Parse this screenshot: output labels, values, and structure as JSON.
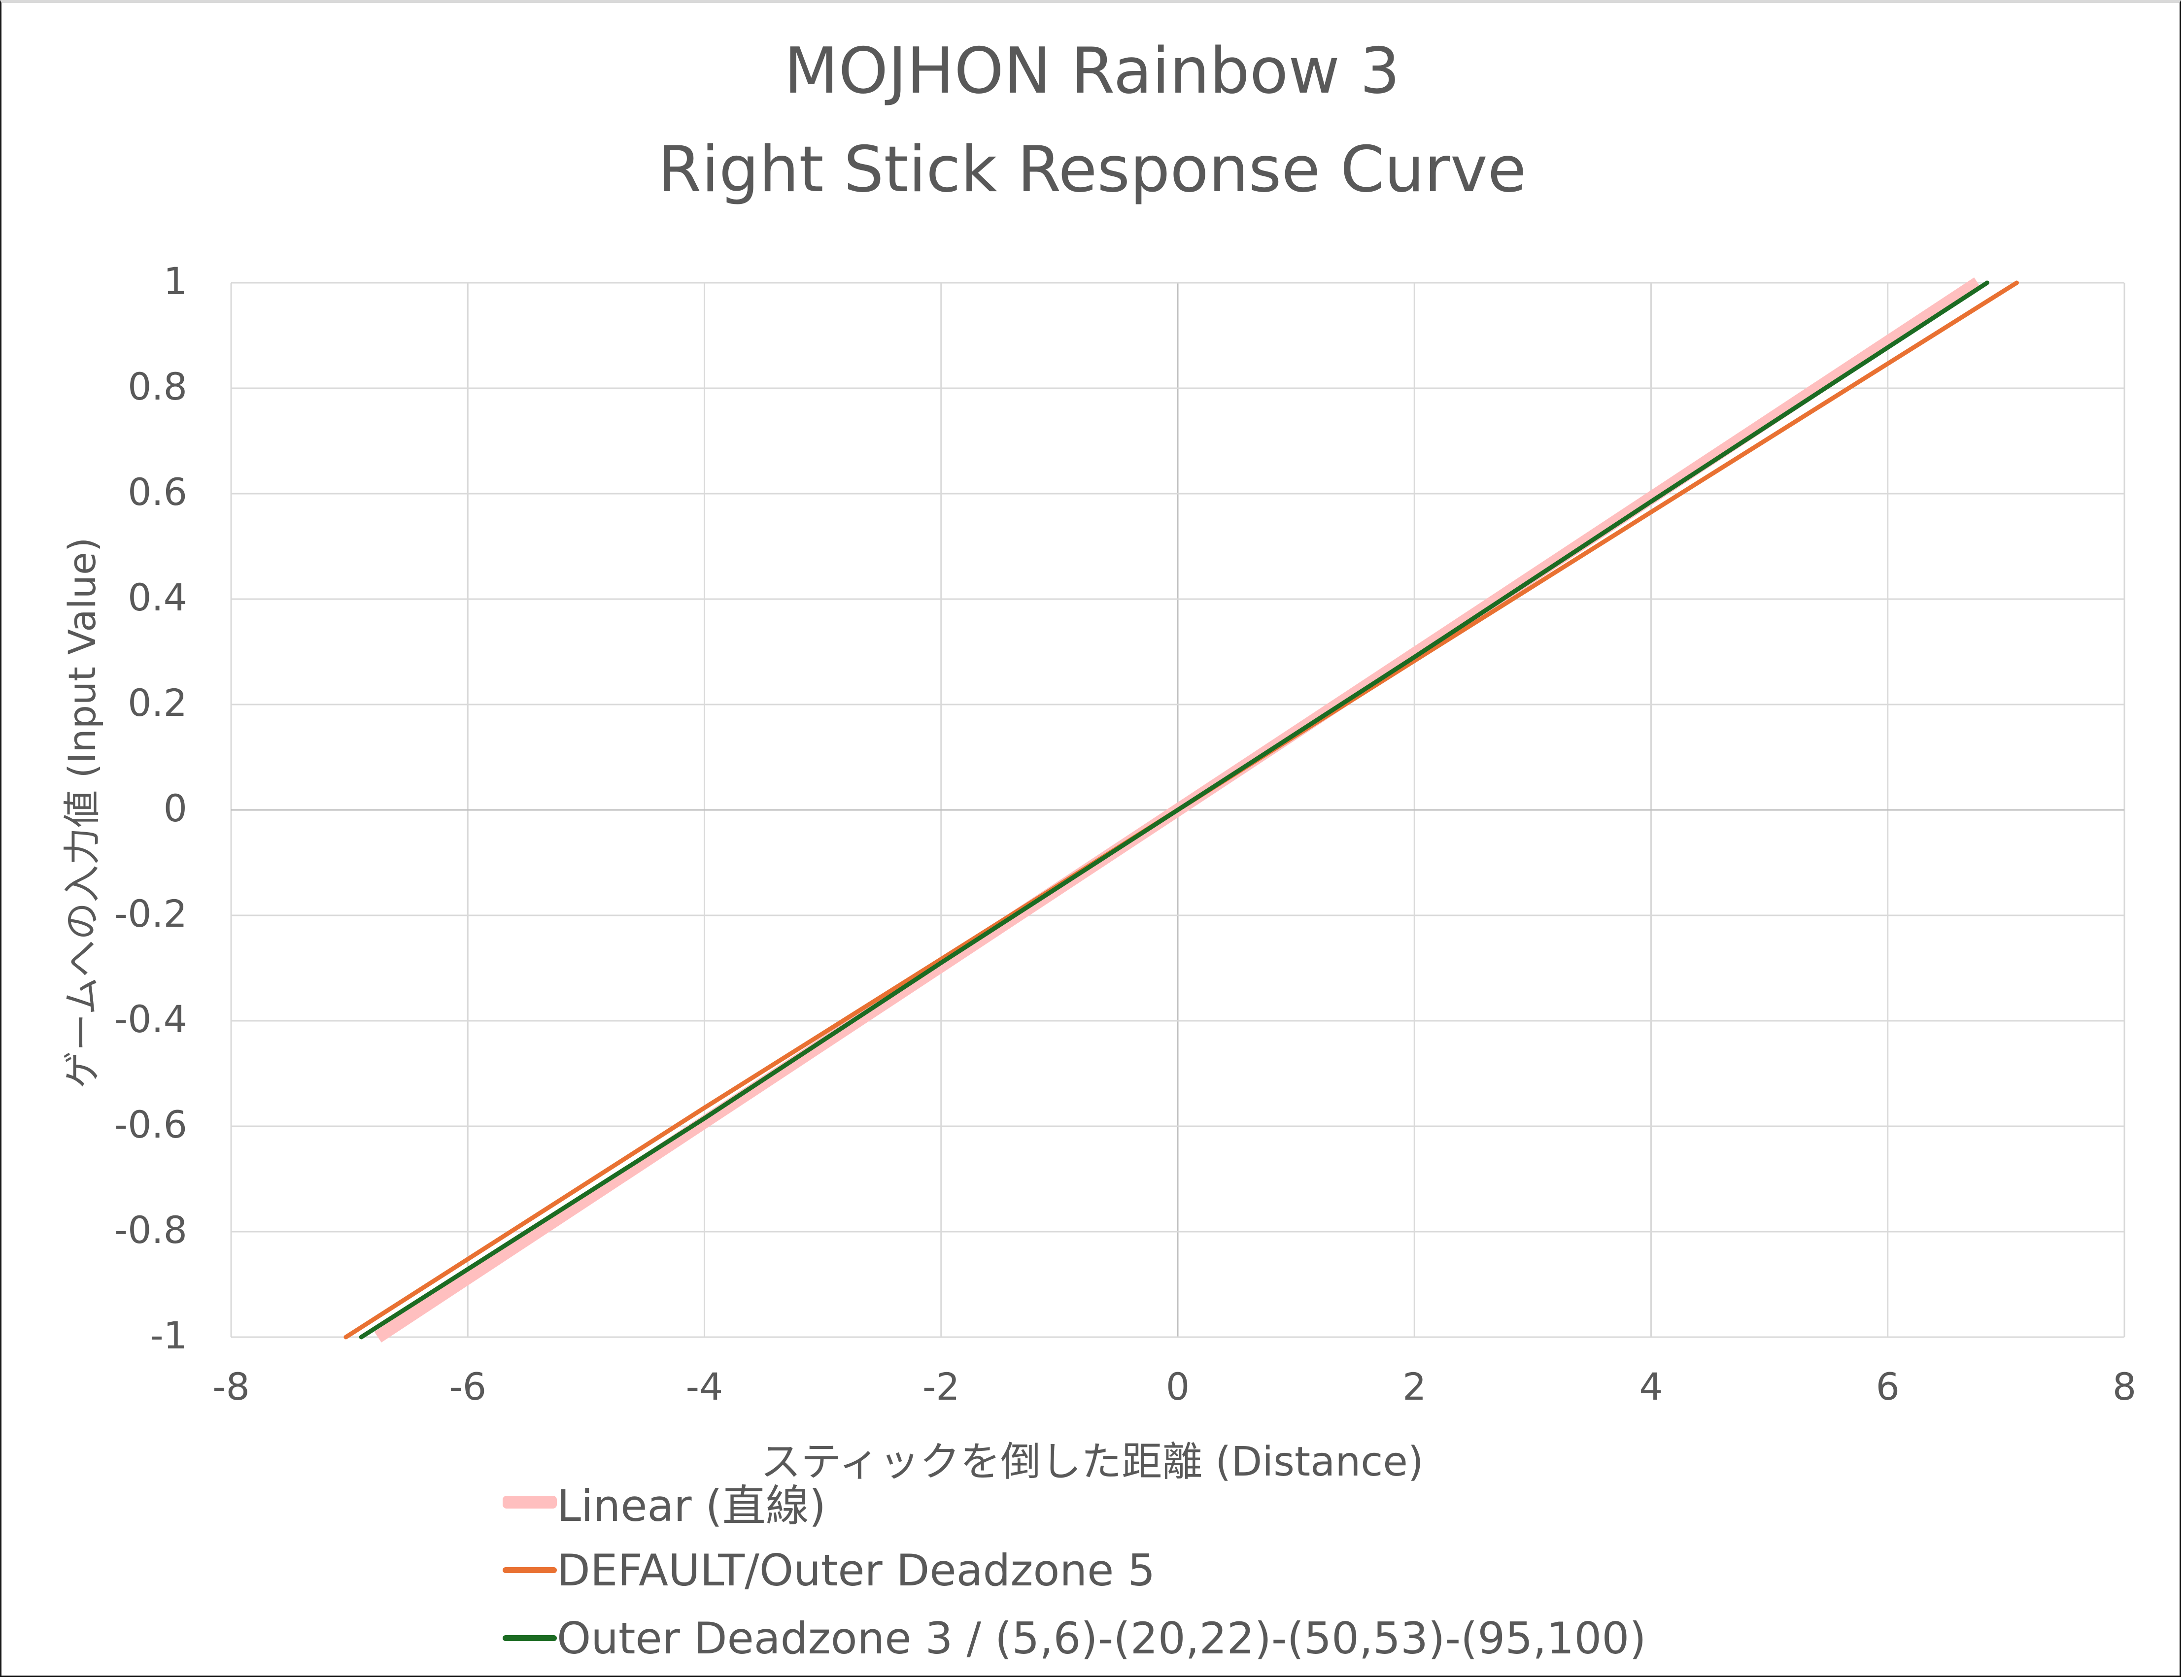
{
  "chart": {
    "title_line1": "MOJHON Rainbow 3",
    "title_line2": "Right Stick Response Curve",
    "x_axis_label": "スティックを倒した距離 (Distance)",
    "y_axis_label": "ゲームへの入力値 (Input Value)",
    "x_ticks": [
      "-8",
      "-6",
      "-4",
      "-2",
      "0",
      "2",
      "4",
      "6",
      "8"
    ],
    "y_ticks": [
      "1",
      "0.8",
      "0.6",
      "0.4",
      "0.2",
      "0",
      "-0.2",
      "-0.4",
      "-0.6",
      "-0.8",
      "-1"
    ],
    "legend": [
      {
        "label": "Linear (直線)",
        "color": "#ffbfbf"
      },
      {
        "label": "DEFAULT/Outer Deadzone 5",
        "color": "#e97132"
      },
      {
        "label": "Outer Deadzone 3 / (5,6)-(20,22)-(50,53)-(95,100)",
        "color": "#1b6b22"
      }
    ]
  },
  "chart_data": {
    "type": "line",
    "title": "MOJHON Rainbow 3 Right Stick Response Curve",
    "xlabel": "スティックを倒した距離 (Distance)",
    "ylabel": "ゲームへの入力値 (Input Value)",
    "xlim": [
      -8,
      8
    ],
    "ylim": [
      -1,
      1
    ],
    "x_tick_step": 2,
    "y_tick_step": 0.2,
    "grid": true,
    "legend_position": "bottom",
    "series": [
      {
        "name": "Linear (直線)",
        "color": "#ffbfbf",
        "x": [
          -6.76,
          -4,
          -2,
          0,
          2,
          4,
          6.76
        ],
        "y": [
          -1,
          -0.592,
          -0.296,
          0,
          0.296,
          0.592,
          1
        ]
      },
      {
        "name": "DEFAULT/Outer Deadzone 5",
        "color": "#e97132",
        "x": [
          -7.03,
          -4,
          -2,
          0,
          2,
          4,
          7.09
        ],
        "y": [
          -1,
          -0.565,
          -0.283,
          0,
          0.283,
          0.565,
          1
        ]
      },
      {
        "name": "Outer Deadzone 3 / (5,6)-(20,22)-(50,53)-(95,100)",
        "color": "#1b6b22",
        "x": [
          -6.9,
          -4,
          -2,
          0,
          2,
          4,
          6.84
        ],
        "y": [
          -1,
          -0.585,
          -0.29,
          0,
          0.29,
          0.585,
          1
        ]
      }
    ]
  }
}
